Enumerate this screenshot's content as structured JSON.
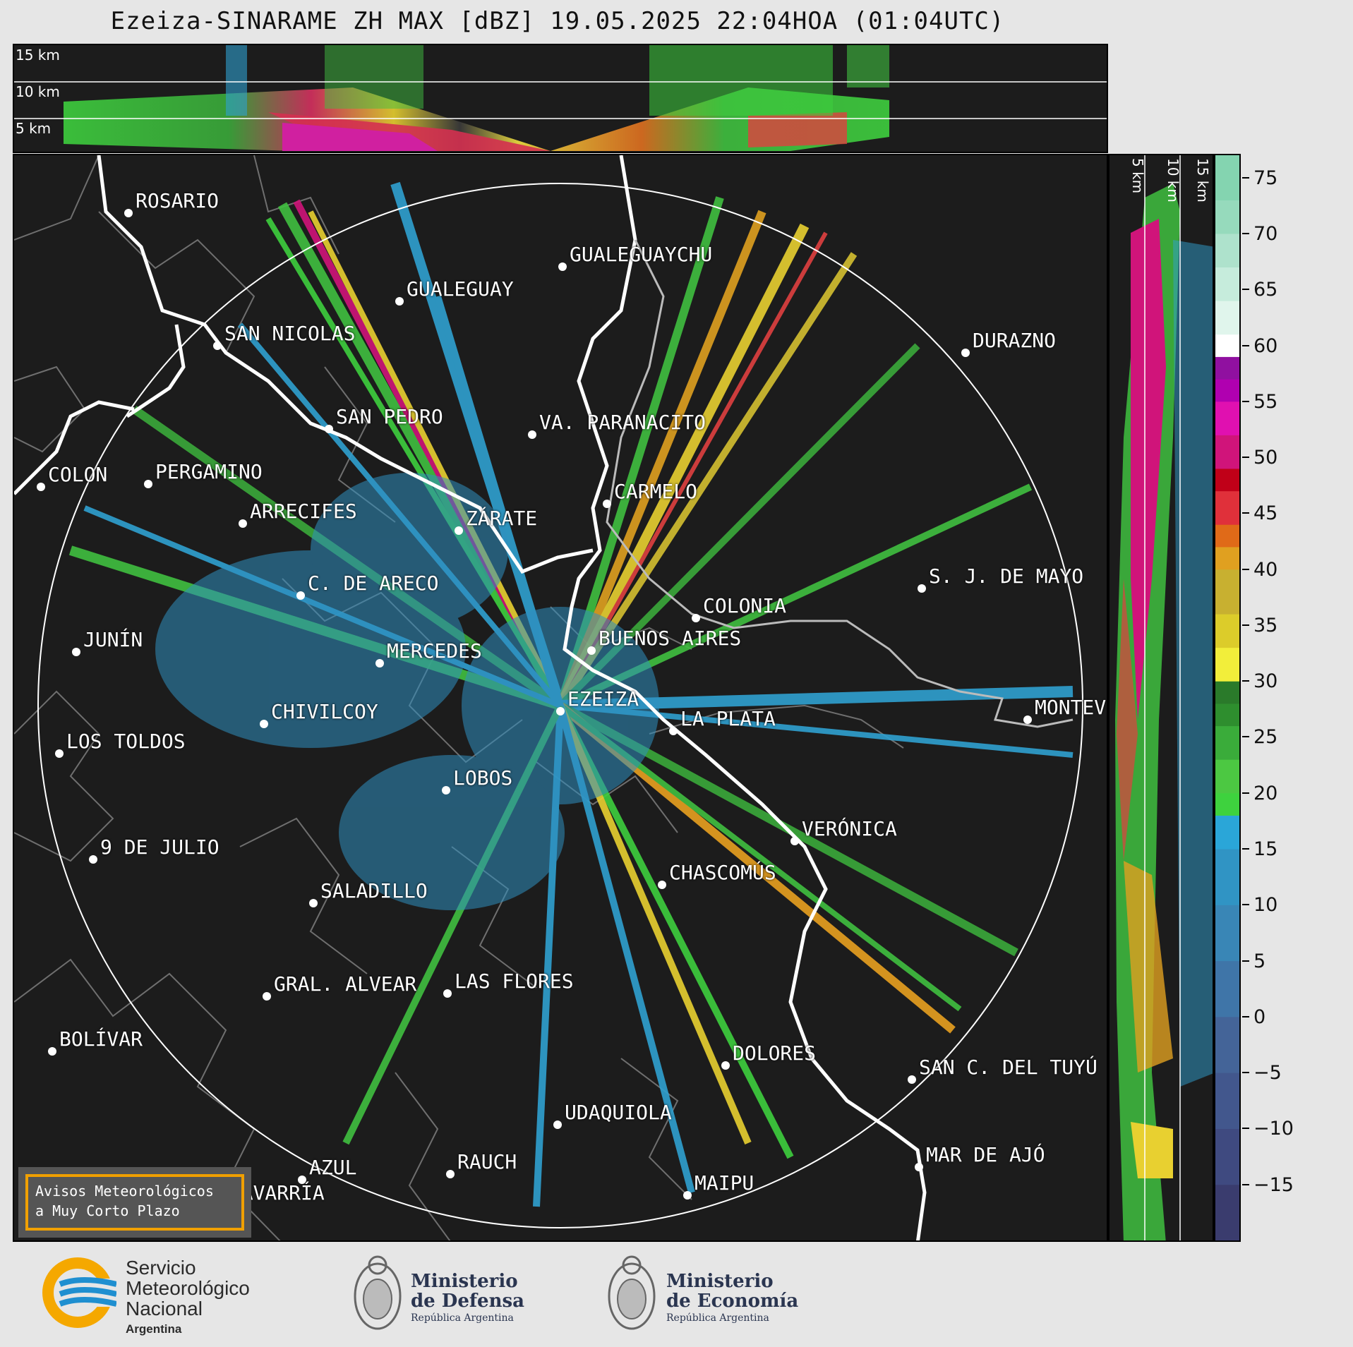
{
  "title": "Ezeiza-SINARAME ZH MAX [dBZ] 19.05.2025 22:04HOA (01:04UTC)",
  "altitude_labels": {
    "top": [
      "15 km",
      "10 km",
      "5 km"
    ],
    "right": [
      "5 km",
      "10 km",
      "15 km"
    ]
  },
  "colorbar": {
    "unit": "dBZ",
    "ticks": [
      "75",
      "70",
      "65",
      "60",
      "55",
      "50",
      "45",
      "40",
      "35",
      "30",
      "25",
      "20",
      "15",
      "10",
      "5",
      "0",
      "−5",
      "−10",
      "−15"
    ],
    "range": [
      -20,
      77
    ]
  },
  "cities": [
    {
      "name": "ROSARIO"
    },
    {
      "name": "GUALEGUAYCHU"
    },
    {
      "name": "GUALEGUAY"
    },
    {
      "name": "SAN NICOLAS"
    },
    {
      "name": "DURAZNO"
    },
    {
      "name": "SAN PEDRO"
    },
    {
      "name": "VA. PARANACITO"
    },
    {
      "name": "COLON"
    },
    {
      "name": "PERGAMINO"
    },
    {
      "name": "CARMELO"
    },
    {
      "name": "ARRECIFES"
    },
    {
      "name": "ZÁRATE"
    },
    {
      "name": "S. J. DE MAYO"
    },
    {
      "name": "C. DE ARECO"
    },
    {
      "name": "COLONIA"
    },
    {
      "name": "JUNÍN"
    },
    {
      "name": "BUENOS AIRES"
    },
    {
      "name": "MERCEDES"
    },
    {
      "name": "EZEIZA"
    },
    {
      "name": "MONTEV"
    },
    {
      "name": "CHIVILCOY"
    },
    {
      "name": "LA PLATA"
    },
    {
      "name": "LOS TOLDOS"
    },
    {
      "name": "LOBOS"
    },
    {
      "name": "VERÓNICA"
    },
    {
      "name": "9 DE JULIO"
    },
    {
      "name": "CHASCOMÚS"
    },
    {
      "name": "SALADILLO"
    },
    {
      "name": "GRAL. ALVEAR"
    },
    {
      "name": "LAS FLORES"
    },
    {
      "name": "BOLÍVAR"
    },
    {
      "name": "DOLORES"
    },
    {
      "name": "SAN C. DEL TUYÚ"
    },
    {
      "name": "UDAQUIOLA"
    },
    {
      "name": "MAR DE AJÓ"
    },
    {
      "name": "AZUL"
    },
    {
      "name": "RAUCH"
    },
    {
      "name": "OLAVARRÍA"
    },
    {
      "name": "MAIPU"
    }
  ],
  "avisos": {
    "line1": "Avisos Meteorológicos",
    "line2": "a Muy Corto Plazo"
  },
  "logos": {
    "smn": {
      "line1": "Servicio",
      "line2": "Meteorológico",
      "line3": "Nacional",
      "sub": "Argentina"
    },
    "defensa": {
      "line1": "Ministerio",
      "line2": "de Defensa",
      "sub": "República Argentina"
    },
    "economia": {
      "line1": "Ministerio",
      "line2": "de Economía",
      "sub": "República Argentina"
    }
  },
  "colors": {
    "background": "#1c1c1c",
    "city_label": "#ffffff",
    "coast": "#ffffff",
    "borders": "#777777",
    "avisos_border": "#f0a000"
  }
}
